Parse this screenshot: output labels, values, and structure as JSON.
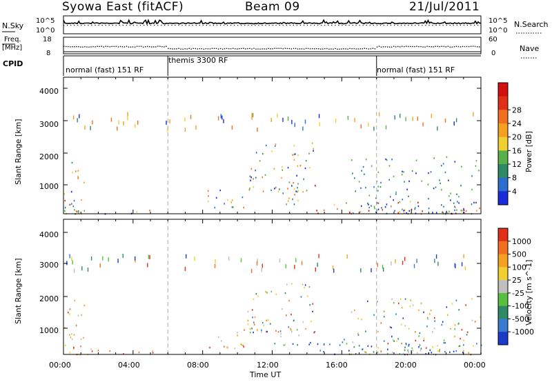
{
  "header": {
    "station": "Syowa East (fitACF)",
    "beam": "Beam 09",
    "date": "21/Jul/2011"
  },
  "top_panels": {
    "nsky_label": "N.Sky",
    "nsky_ticks": [
      "10^5",
      "10^0"
    ],
    "nsearch_label": "N.Search",
    "nsearch_ticks": [
      "10^5",
      "10^0"
    ],
    "freq_label_1": "Freq.",
    "freq_label_2": "[MHz]",
    "freq_ticks": [
      "18",
      "8"
    ],
    "nave_label": "Nave",
    "nave_ticks": [
      "60",
      "0"
    ],
    "cpid_label": "CPID",
    "cpid_segments": [
      {
        "label": "normal (fast) 151 RF",
        "start_hr": 0,
        "end_hr": 6
      },
      {
        "label": "themis 3300 RF",
        "start_hr": 6,
        "end_hr": 18
      },
      {
        "label": "normal (fast) 151 RF",
        "start_hr": 18,
        "end_hr": 24
      }
    ]
  },
  "chart_data": [
    {
      "type": "heatmap",
      "name": "power",
      "ylabel": "Slant Range [km]",
      "ylim": [
        180,
        4500
      ],
      "yticks": [
        "1000",
        "2000",
        "3000",
        "4000"
      ],
      "xlim": [
        0,
        24
      ],
      "colorbar_label": "Power [dB]",
      "colorbar_ticks": [
        "4",
        "8",
        "12",
        "16",
        "20",
        "24",
        "28"
      ],
      "colorbar_colors": [
        "#1a2bd9",
        "#2a6fd0",
        "#2e8a64",
        "#58b048",
        "#f0d030",
        "#f5a020",
        "#f07020",
        "#e23018",
        "#d21010"
      ],
      "echo_regions": [
        {
          "x": [
            0.0,
            0.5
          ],
          "y": [
            200,
            900
          ],
          "level": "high"
        },
        {
          "x": [
            0.0,
            1.2
          ],
          "y": [
            200,
            2100
          ],
          "level": "mid"
        },
        {
          "x": [
            0.5,
            5.5
          ],
          "y": [
            200,
            350
          ],
          "level": "mid"
        },
        {
          "x": [
            8.2,
            10.5
          ],
          "y": [
            400,
            1100
          ],
          "level": "mid"
        },
        {
          "x": [
            10.5,
            14.5
          ],
          "y": [
            900,
            2500
          ],
          "level": "mid"
        },
        {
          "x": [
            12.0,
            14.5
          ],
          "y": [
            500,
            1000
          ],
          "level": "mid"
        },
        {
          "x": [
            14.5,
            24.0
          ],
          "y": [
            200,
            600
          ],
          "level": "high"
        },
        {
          "x": [
            16.5,
            24.0
          ],
          "y": [
            200,
            2000
          ],
          "level": "low"
        }
      ]
    },
    {
      "type": "heatmap",
      "name": "velocity",
      "ylabel": "Slant Range [km]",
      "ylim": [
        180,
        4500
      ],
      "yticks": [
        "1000",
        "2000",
        "3000",
        "4000"
      ],
      "xlim": [
        0,
        24
      ],
      "xticks": [
        "00:00",
        "04:00",
        "08:00",
        "12:00",
        "16:00",
        "20:00",
        "00:00"
      ],
      "xlabel": "Time UT",
      "colorbar_label": "Velocity [m s^-1]",
      "colorbar_ticks": [
        "1000",
        "500",
        "100",
        "25",
        "-25",
        "-100",
        "-500",
        "-1000"
      ],
      "colorbar_colors": [
        "#1a3cc8",
        "#3a7ad0",
        "#2e8a64",
        "#58c040",
        "#c0c0c0",
        "#f0d030",
        "#f5a020",
        "#f07020",
        "#e23018"
      ],
      "echo_regions": [
        {
          "x": [
            0.0,
            0.5
          ],
          "y": [
            200,
            900
          ],
          "level": "mixed"
        },
        {
          "x": [
            0.0,
            1.2
          ],
          "y": [
            200,
            2100
          ],
          "level": "warm"
        },
        {
          "x": [
            0.5,
            5.5
          ],
          "y": [
            200,
            400
          ],
          "level": "warm"
        },
        {
          "x": [
            8.2,
            10.5
          ],
          "y": [
            400,
            1100
          ],
          "level": "warm"
        },
        {
          "x": [
            10.5,
            14.5
          ],
          "y": [
            900,
            2500
          ],
          "level": "mixed"
        },
        {
          "x": [
            12.0,
            15.0
          ],
          "y": [
            500,
            1000
          ],
          "level": "cool"
        },
        {
          "x": [
            14.5,
            24.0
          ],
          "y": [
            200,
            700
          ],
          "level": "cool"
        },
        {
          "x": [
            16.5,
            24.0
          ],
          "y": [
            200,
            2000
          ],
          "level": "mixed"
        }
      ]
    }
  ]
}
